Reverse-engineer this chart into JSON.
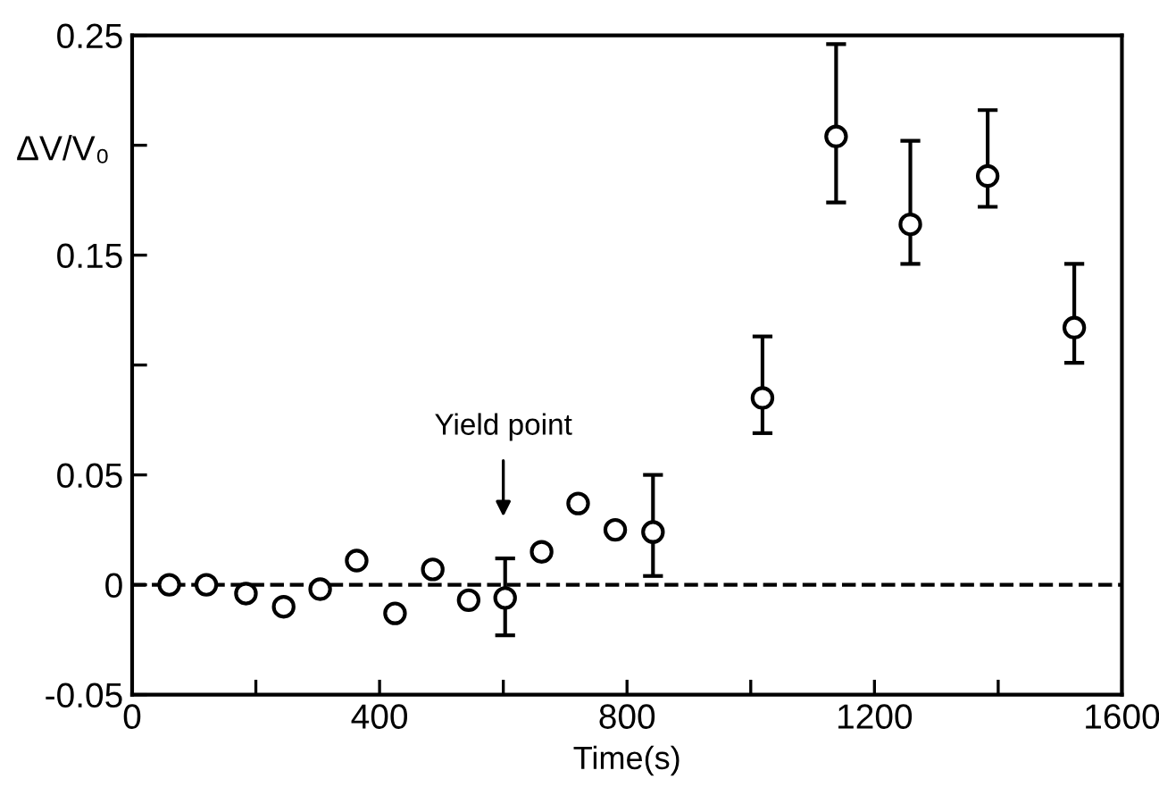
{
  "chart_data": {
    "type": "scatter",
    "xlabel": "Time(s)",
    "ylabel": "ΔV/V₀",
    "x": [
      60,
      120,
      184,
      245,
      304,
      363,
      425,
      486,
      544,
      603,
      662,
      721,
      781,
      842,
      1019,
      1138,
      1258,
      1383,
      1523
    ],
    "series": [
      {
        "color": "#000000",
        "values": [
          0,
          0,
          -0.004,
          -0.01,
          -0.002,
          0.011,
          -0.013,
          0.007,
          -0.007,
          -0.006,
          0.015,
          0.037,
          0.025,
          0.024,
          0.085,
          0.204,
          0.164,
          0.186,
          0.117
        ],
        "errors": [
          null,
          null,
          null,
          null,
          null,
          null,
          null,
          null,
          null,
          [
            -0.023,
            0.012
          ],
          null,
          null,
          null,
          [
            0.004,
            0.05
          ],
          [
            0.069,
            0.113
          ],
          [
            0.174,
            0.246
          ],
          [
            0.146,
            0.202
          ],
          [
            0.172,
            0.216
          ],
          [
            0.101,
            0.146
          ]
        ]
      }
    ],
    "marker": "circle",
    "xlim": [
      0,
      1600
    ],
    "xticks": [
      0,
      {
        "value": 200,
        "label": null
      },
      400,
      {
        "value": 600,
        "label": null
      },
      800,
      {
        "value": 1000,
        "label": null
      },
      1200,
      {
        "value": 1400,
        "label": null
      },
      1600
    ],
    "ylim": [
      -0.05,
      0.25
    ],
    "yticks": [
      -0.05,
      0,
      0.05,
      {
        "value": 0.1,
        "label": null
      },
      0.15,
      {
        "value": 0.2,
        "label": null
      },
      0.25
    ],
    "ref_lines": [
      {
        "axis": "y",
        "value": 0,
        "color": "#000000",
        "line_style": "dashed"
      }
    ],
    "annotations": [
      "Yield point"
    ],
    "grid": false,
    "legend": false
  }
}
